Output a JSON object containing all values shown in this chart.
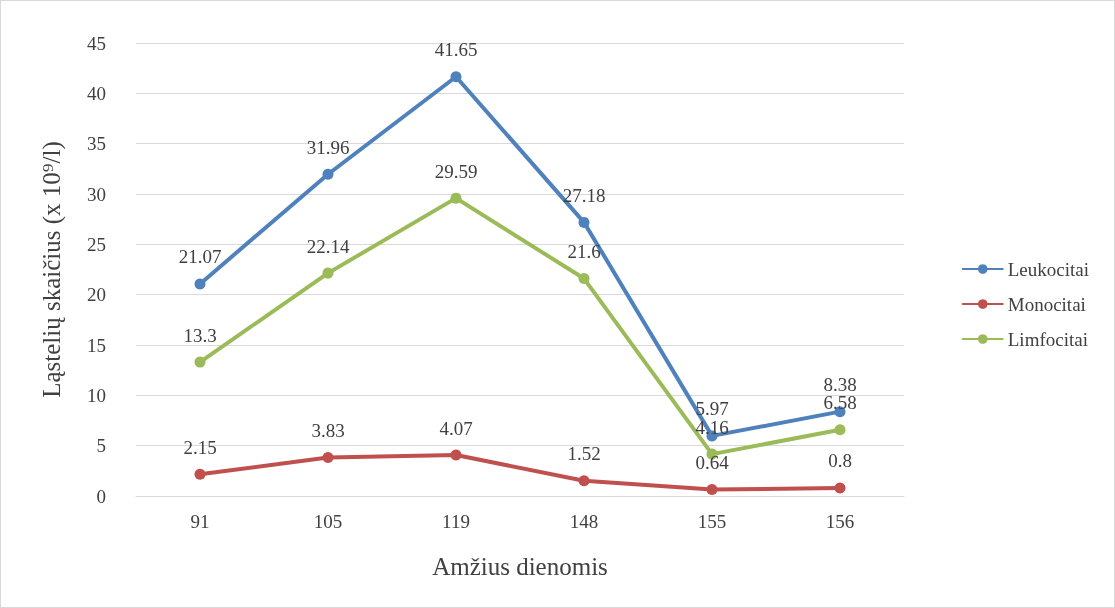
{
  "chart_data": {
    "type": "line",
    "xlabel": "Amžius dienomis",
    "ylabel": "Ląstelių skaičius (x 10⁹/l)",
    "categories": [
      "91",
      "105",
      "119",
      "148",
      "155",
      "156"
    ],
    "series": [
      {
        "name": "Leukocitai",
        "color": "#4f81bd",
        "values": [
          21.07,
          31.96,
          41.65,
          27.18,
          5.97,
          8.38
        ]
      },
      {
        "name": "Monocitai",
        "color": "#c0504d",
        "values": [
          2.15,
          3.83,
          4.07,
          1.52,
          0.64,
          0.8
        ]
      },
      {
        "name": "Limfocitai",
        "color": "#9bbb59",
        "values": [
          13.3,
          22.14,
          29.59,
          21.6,
          4.16,
          6.58
        ]
      }
    ],
    "ylim": [
      0,
      45
    ],
    "yticks": [
      0,
      5,
      10,
      15,
      20,
      25,
      30,
      35,
      40,
      45
    ],
    "grid": "y",
    "legend": "right",
    "marker": "circle",
    "line_style": "solid",
    "data_labels": true
  }
}
